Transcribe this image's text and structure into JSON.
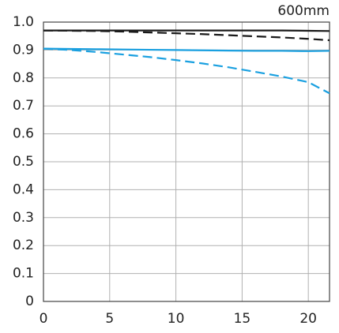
{
  "chart_data": {
    "type": "line",
    "title": "600mm",
    "x": [
      0,
      2,
      4,
      6,
      8,
      10,
      12,
      14,
      16,
      18,
      20,
      21.6
    ],
    "series": [
      {
        "color": "#1a1a1a",
        "dash": false,
        "values": [
          0.97,
          0.97,
          0.97,
          0.97,
          0.97,
          0.97,
          0.97,
          0.97,
          0.97,
          0.97,
          0.969,
          0.968
        ]
      },
      {
        "color": "#1a1a1a",
        "dash": true,
        "values": [
          0.97,
          0.969,
          0.968,
          0.966,
          0.963,
          0.96,
          0.957,
          0.953,
          0.949,
          0.945,
          0.94,
          0.935
        ]
      },
      {
        "color": "#1aa0e0",
        "dash": false,
        "values": [
          0.905,
          0.904,
          0.903,
          0.902,
          0.901,
          0.9,
          0.899,
          0.898,
          0.897,
          0.897,
          0.896,
          0.897
        ]
      },
      {
        "color": "#1aa0e0",
        "dash": true,
        "values": [
          0.905,
          0.9,
          0.893,
          0.884,
          0.875,
          0.864,
          0.852,
          0.838,
          0.822,
          0.805,
          0.785,
          0.745
        ]
      }
    ],
    "xlim": [
      0,
      21.6
    ],
    "ylim": [
      0,
      1
    ],
    "xticks": [
      0,
      5,
      10,
      15,
      20
    ],
    "yticks": [
      0,
      0.1,
      0.2,
      0.3,
      0.4,
      0.5,
      0.6,
      0.7,
      0.8,
      0.9,
      {
        "value": 1,
        "label": "1.0"
      }
    ],
    "grid": true
  }
}
